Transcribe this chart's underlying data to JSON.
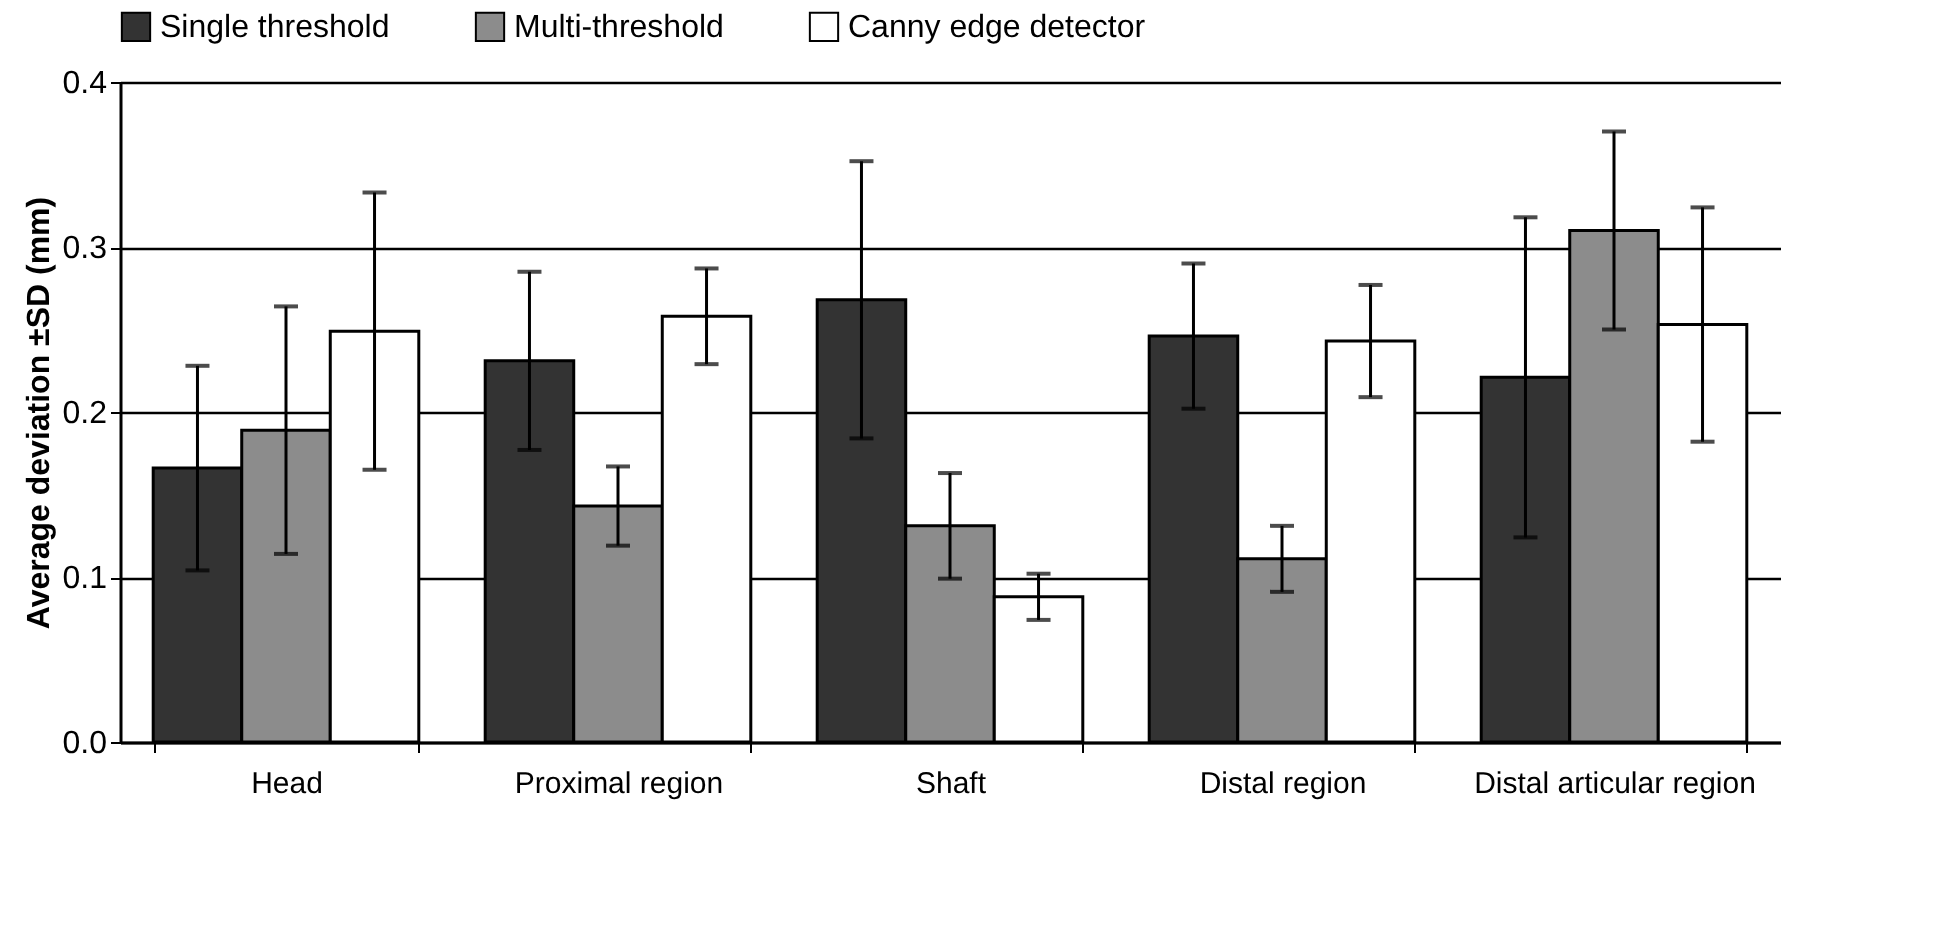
{
  "chart_data": {
    "type": "bar",
    "ylabel": "Average deviation ±SD (mm)",
    "categories": [
      "Head",
      "Proximal region",
      "Shaft",
      "Distal region",
      "Distal articular region"
    ],
    "series": [
      {
        "name": "Single threshold",
        "color": "#333333",
        "values": [
          0.166,
          0.231,
          0.268,
          0.246,
          0.221
        ],
        "errors": [
          0.062,
          0.054,
          0.084,
          0.044,
          0.097
        ]
      },
      {
        "name": "Multi-threshold",
        "color": "#8c8c8c",
        "values": [
          0.189,
          0.143,
          0.131,
          0.111,
          0.31
        ],
        "errors": [
          0.075,
          0.024,
          0.032,
          0.02,
          0.06
        ]
      },
      {
        "name": "Canny edge detector",
        "color": "#ffffff",
        "values": [
          0.249,
          0.258,
          0.088,
          0.243,
          0.253
        ],
        "errors": [
          0.084,
          0.029,
          0.014,
          0.034,
          0.071
        ]
      }
    ],
    "ylim": [
      0,
      0.4
    ],
    "yticks": [
      {
        "value": 0,
        "label": "0.0"
      },
      {
        "value": 0.1,
        "label": "0.1"
      },
      {
        "value": 0.2,
        "label": "0.2"
      },
      {
        "value": 0.3,
        "label": "0.3"
      },
      {
        "value": 0.4,
        "label": "0.4"
      }
    ],
    "grid": "y",
    "legend": "top"
  }
}
